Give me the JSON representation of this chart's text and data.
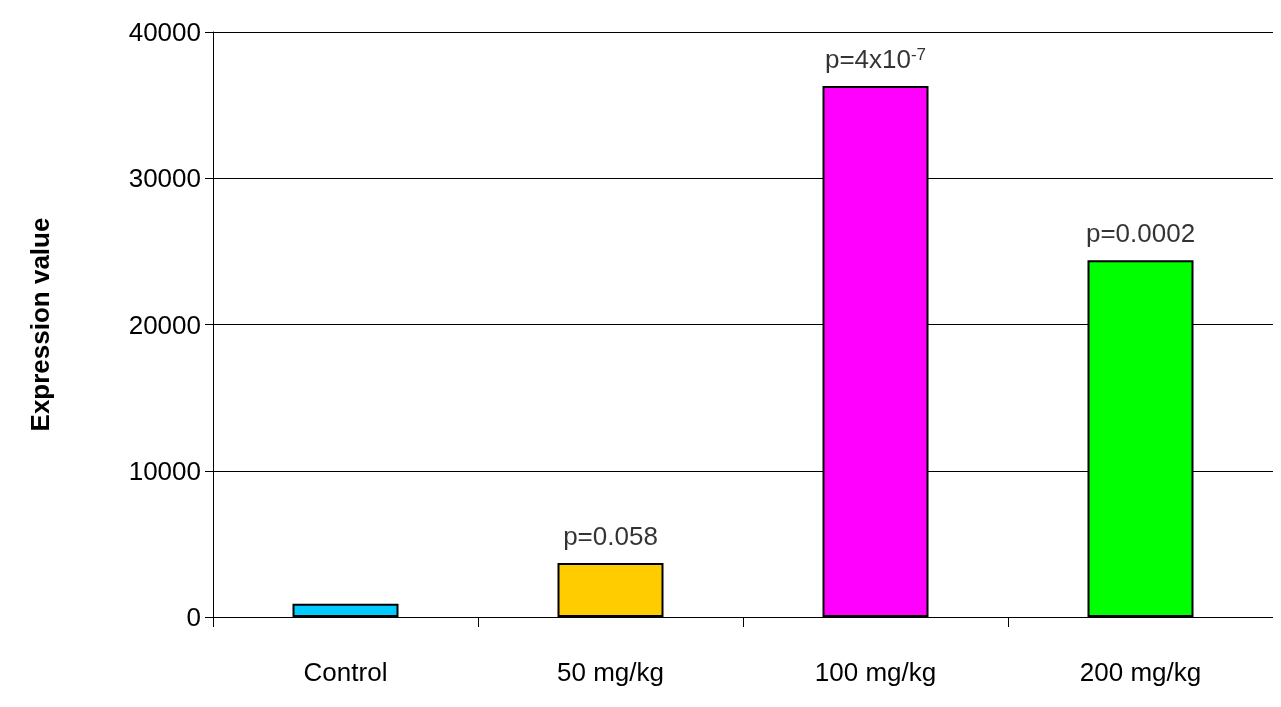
{
  "chart_data": {
    "type": "bar",
    "ylabel": "Expression value",
    "categories": [
      "Control",
      "50 mg/kg",
      "100 mg/kg",
      "200 mg/kg"
    ],
    "values": [
      900,
      3700,
      36300,
      24400
    ],
    "colors": [
      "#00ccff",
      "#ffcc00",
      "#ff00ff",
      "#00ff00"
    ],
    "ylim": [
      0,
      40000
    ],
    "yticks": [
      0,
      10000,
      20000,
      30000,
      40000
    ],
    "grid": "y",
    "annotations": [
      {
        "text": "p=0.058",
        "x": "50 mg/kg",
        "y": 3700
      },
      {
        "text": "p=4x10$^{-7}$",
        "x": "100 mg/kg",
        "y": 36300
      },
      {
        "text": "p=0.0002",
        "x": "200 mg/kg",
        "y": 24400
      }
    ]
  }
}
